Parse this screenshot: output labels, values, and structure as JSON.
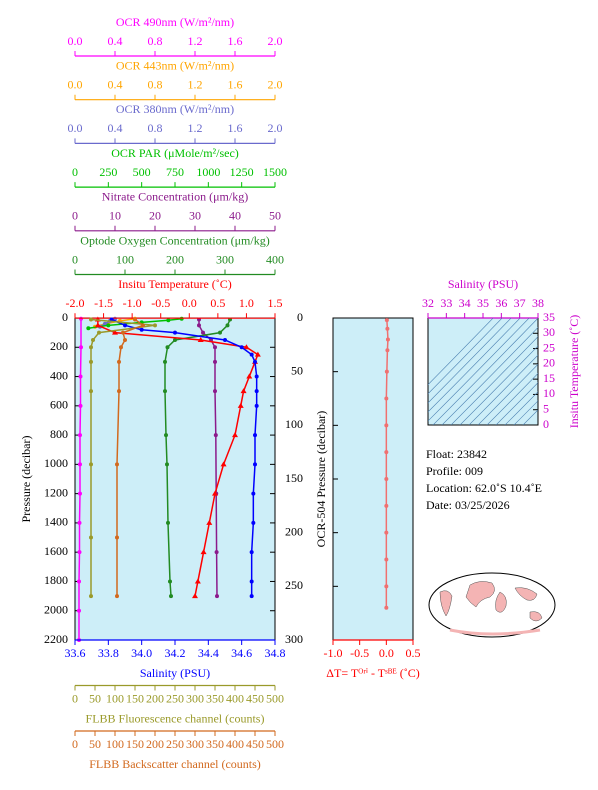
{
  "chart_data": [
    {
      "type": "line",
      "y_label": "Pressure (decibar)",
      "ylim": [
        0,
        2200
      ],
      "y_inverted": true,
      "yticks": [
        0,
        200,
        400,
        600,
        800,
        1000,
        1200,
        1400,
        1600,
        1800,
        2000,
        2200
      ],
      "x_axes": [
        {
          "name": "OCR 490nm (W/m²/nm)",
          "position": "top",
          "color": "#ff00ff",
          "marker": "dot",
          "xlim": [
            0,
            2
          ],
          "xticks": [
            {
              "value": 0,
              "label": "0.0"
            },
            0.4,
            0.8,
            1.2,
            1.6,
            {
              "value": 2,
              "label": "2.0"
            }
          ],
          "pressure": [
            5,
            200,
            400,
            600,
            800,
            1000,
            1200,
            1400,
            1600,
            1800,
            2000,
            2200
          ],
          "values": [
            0.06,
            0.06,
            0.055,
            0.055,
            0.05,
            0.05,
            0.05,
            0.045,
            0.045,
            0.04,
            0.04,
            0.04
          ]
        },
        {
          "name": "OCR 443nm (W/m²/nm)",
          "position": "top",
          "color": "#ffa500",
          "marker": "dot",
          "xlim": [
            0,
            2
          ],
          "xticks": [
            {
              "value": 0,
              "label": "0.0"
            },
            0.4,
            0.8,
            1.2,
            1.6,
            {
              "value": 2,
              "label": "2.0"
            }
          ],
          "pressure": [
            5,
            20,
            40,
            60
          ],
          "values": [
            0.6,
            0.45,
            0.3,
            0.2
          ]
        },
        {
          "name": "OCR 380nm (W/m²/nm)",
          "position": "top",
          "color": "#6a6acd",
          "marker": "dot",
          "xlim": [
            0,
            2
          ],
          "xticks": [
            {
              "value": 0,
              "label": "0.0"
            },
            0.4,
            0.8,
            1.2,
            1.6,
            {
              "value": 2,
              "label": "2.0"
            }
          ],
          "pressure": [
            5,
            20,
            40,
            60
          ],
          "values": [
            0.4,
            0.35,
            0.3,
            0.25
          ]
        },
        {
          "name": "OCR PAR (μMole/m²/sec)",
          "position": "top",
          "color": "#00c000",
          "marker": "dot",
          "xlim": [
            0,
            1500
          ],
          "xticks": [
            0,
            250,
            500,
            750,
            1000,
            1250,
            1500
          ],
          "pressure": [
            5,
            15,
            30,
            50,
            70
          ],
          "values": [
            800,
            700,
            500,
            250,
            100
          ]
        },
        {
          "name": "Nitrate Concentration (μm/kg)",
          "position": "top",
          "color": "#8b1a8b",
          "marker": "dot",
          "xlim": [
            0,
            50
          ],
          "xticks": [
            0,
            10,
            20,
            30,
            40,
            50
          ],
          "pressure": [
            10,
            50,
            100,
            150,
            200,
            300,
            500,
            800,
            1200,
            1600,
            1900
          ],
          "values": [
            31,
            31,
            32,
            34,
            35,
            35,
            35,
            35.2,
            35.3,
            35.4,
            35.5
          ]
        },
        {
          "name": "Optode Oxygen Concentration (μm/kg)",
          "position": "top",
          "color": "#228b22",
          "marker": "dot",
          "xlim": [
            0,
            400
          ],
          "xticks": [
            0,
            100,
            200,
            300,
            400
          ],
          "pressure": [
            10,
            50,
            100,
            150,
            200,
            300,
            500,
            800,
            1000,
            1400,
            1800,
            1900
          ],
          "values": [
            310,
            305,
            290,
            200,
            185,
            180,
            180,
            182,
            184,
            186,
            190,
            192
          ]
        },
        {
          "name": "Insitu Temperature (˚C)",
          "position": "top",
          "color": "#ff0000",
          "marker": "triangle",
          "xlim": [
            -2,
            1.5
          ],
          "xticks": [
            {
              "value": -2,
              "label": "-2.0"
            },
            -1.5,
            {
              "value": -1,
              "label": "-1.0"
            },
            -0.5,
            {
              "value": 0,
              "label": "0.0"
            },
            0.5,
            {
              "value": 1,
              "label": "1.0"
            },
            1.5
          ],
          "pressure": [
            10,
            50,
            100,
            150,
            200,
            250,
            300,
            400,
            500,
            600,
            800,
            1000,
            1200,
            1400,
            1600,
            1800,
            1900
          ],
          "values": [
            -1.6,
            -1.6,
            -1.3,
            0.2,
            1.0,
            1.2,
            1.15,
            1.05,
            0.95,
            0.9,
            0.8,
            0.6,
            0.45,
            0.35,
            0.25,
            0.15,
            0.1
          ]
        },
        {
          "name": "Salinity (PSU)",
          "position": "bottom",
          "color": "#0000ff",
          "marker": "dot",
          "xlim": [
            33.6,
            34.8
          ],
          "xticks": [
            33.6,
            33.8,
            {
              "value": 34,
              "label": "34.0"
            },
            34.2,
            34.4,
            34.6,
            34.8
          ],
          "pressure": [
            10,
            50,
            80,
            100,
            150,
            200,
            250,
            300,
            400,
            500,
            600,
            800,
            1000,
            1200,
            1400,
            1600,
            1800,
            1900
          ],
          "values": [
            33.82,
            33.9,
            34.0,
            34.2,
            34.5,
            34.6,
            34.66,
            34.68,
            34.69,
            34.69,
            34.69,
            34.68,
            34.68,
            34.67,
            34.67,
            34.66,
            34.66,
            34.66
          ]
        },
        {
          "name": "FLBB Fluorescence channel (counts)",
          "position": "bottom",
          "color": "#9a9a2a",
          "marker": "dot",
          "xlim": [
            0,
            500
          ],
          "xticks": [
            0,
            50,
            100,
            150,
            200,
            250,
            300,
            350,
            400,
            450,
            500
          ],
          "pressure": [
            10,
            50,
            100,
            150,
            200,
            300,
            500,
            1000,
            1500,
            1900
          ],
          "values": [
            40,
            200,
            60,
            45,
            40,
            40,
            40,
            40,
            40,
            40
          ]
        },
        {
          "name": "FLBB Backscatter channel (counts)",
          "position": "bottom",
          "color": "#d2691e",
          "marker": "dot",
          "xlim": [
            0,
            500
          ],
          "xticks": [
            0,
            50,
            100,
            150,
            200,
            250,
            300,
            350,
            400,
            450,
            500
          ],
          "pressure": [
            10,
            50,
            100,
            150,
            200,
            300,
            500,
            1000,
            1500,
            1900
          ],
          "values": [
            150,
            170,
            120,
            125,
            115,
            110,
            110,
            105,
            105,
            105
          ]
        }
      ]
    },
    {
      "type": "line",
      "y_label": "OCR-504 Pressure (decibar)",
      "ylim": [
        0,
        300
      ],
      "y_inverted": true,
      "yticks": [
        0,
        50,
        100,
        150,
        200,
        250,
        300
      ],
      "x_axes": [
        {
          "name": "ΔT= Tᴼʳⁱ - Tˢᴮᴱ (˚C)",
          "position": "bottom",
          "color": "#ff0000",
          "marker": "dot",
          "line_color": "#f07070",
          "xlim": [
            -1,
            0.5
          ],
          "xticks": [
            {
              "value": -1,
              "label": "-1.0"
            },
            -0.5,
            {
              "value": 0,
              "label": "0.0"
            },
            0.5
          ],
          "pressure": [
            2,
            10,
            20,
            30,
            50,
            75,
            100,
            125,
            150,
            175,
            200,
            225,
            250,
            270
          ],
          "values": [
            0.01,
            0.02,
            0.03,
            0.02,
            0.01,
            0.0,
            0.0,
            0.0,
            0.0,
            0.0,
            0.0,
            0.0,
            0.0,
            0.0
          ]
        }
      ]
    },
    {
      "type": "scatter",
      "y_label": "Insitu Temperature (˚C)",
      "ylim": [
        0,
        35
      ],
      "yticks": [
        0,
        5,
        10,
        15,
        20,
        25,
        30,
        35
      ],
      "x_axes": [
        {
          "name": "Salinity (PSU)",
          "position": "top",
          "color": "#cc00cc",
          "xlim": [
            32,
            38
          ],
          "xticks": [
            32,
            33,
            34,
            35,
            36,
            37,
            38
          ]
        }
      ]
    }
  ],
  "profile_info": [
    "Float:  23842",
    "Profile:  009",
    "Location:  62.0˚S  10.4˚E",
    "Date:  03/25/2026"
  ]
}
